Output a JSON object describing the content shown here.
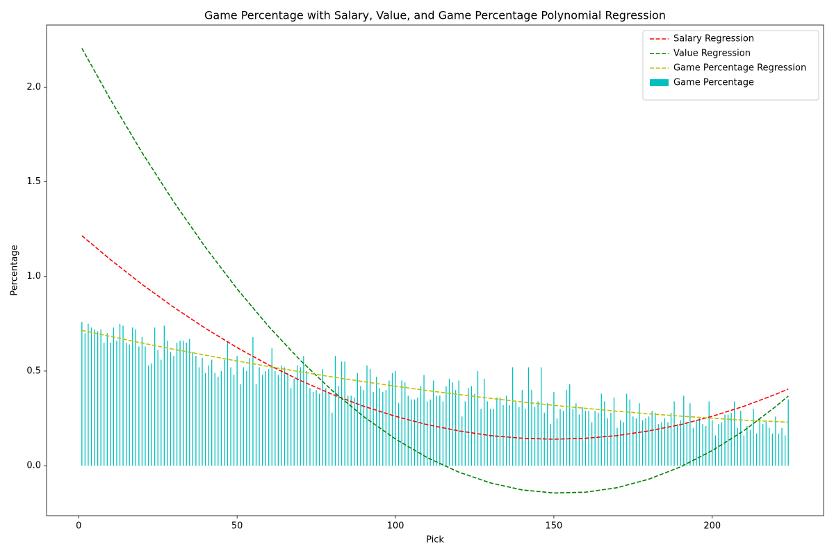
{
  "chart_data": {
    "type": "bar",
    "title": "Game Percentage with Salary, Value, and Game Percentage Polynomial Regression",
    "x_label": "Pick",
    "y_label": "Percentage",
    "xlim": [
      -10.15,
      235.15
    ],
    "ylim": [
      -0.264,
      2.328
    ],
    "xticks": [
      0,
      50,
      100,
      150,
      200
    ],
    "yticks": [
      {
        "value": 0,
        "label": "0.0"
      },
      0.5,
      {
        "value": 1,
        "label": "1.0"
      },
      1.5,
      {
        "value": 2,
        "label": "2.0"
      }
    ],
    "legend": "upper right",
    "series": [
      {
        "name": "Salary Regression",
        "type": "line",
        "color": "#ff0000",
        "linestyle": "dashed",
        "x": [
          1,
          10,
          20,
          30,
          40,
          50,
          60,
          70,
          80,
          90,
          100,
          110,
          120,
          130,
          140,
          150,
          160,
          170,
          180,
          190,
          200,
          210,
          220,
          224
        ],
        "values": [
          1.215,
          1.089,
          0.958,
          0.837,
          0.726,
          0.624,
          0.532,
          0.45,
          0.377,
          0.314,
          0.261,
          0.217,
          0.184,
          0.159,
          0.145,
          0.14,
          0.145,
          0.159,
          0.184,
          0.217,
          0.261,
          0.314,
          0.377,
          0.405
        ]
      },
      {
        "name": "Value Regression",
        "type": "line",
        "color": "#008000",
        "linestyle": "dashed",
        "x": [
          1,
          10,
          20,
          30,
          40,
          50,
          60,
          70,
          80,
          90,
          100,
          110,
          120,
          130,
          140,
          150,
          160,
          170,
          180,
          190,
          200,
          210,
          220,
          224
        ],
        "values": [
          2.205,
          1.935,
          1.654,
          1.394,
          1.154,
          0.934,
          0.735,
          0.556,
          0.397,
          0.259,
          0.141,
          0.043,
          -0.034,
          -0.091,
          -0.128,
          -0.144,
          -0.14,
          -0.116,
          -0.071,
          -0.006,
          0.08,
          0.185,
          0.312,
          0.368
        ]
      },
      {
        "name": "Game Percentage Regression",
        "type": "line",
        "color": "#bfbf00",
        "linestyle": "dashed",
        "x": [
          1,
          10,
          20,
          30,
          40,
          50,
          60,
          70,
          80,
          90,
          100,
          110,
          120,
          130,
          140,
          150,
          160,
          170,
          180,
          190,
          200,
          210,
          220,
          224
        ],
        "values": [
          0.715,
          0.683,
          0.648,
          0.615,
          0.584,
          0.553,
          0.524,
          0.496,
          0.469,
          0.444,
          0.42,
          0.397,
          0.376,
          0.356,
          0.337,
          0.319,
          0.303,
          0.288,
          0.274,
          0.262,
          0.251,
          0.241,
          0.233,
          0.23
        ]
      },
      {
        "name": "Game Percentage",
        "type": "bar",
        "color": "#00bfbf",
        "x": [
          1,
          2,
          3,
          4,
          5,
          6,
          7,
          8,
          9,
          10,
          11,
          12,
          13,
          14,
          15,
          16,
          17,
          18,
          19,
          20,
          21,
          22,
          23,
          24,
          25,
          26,
          27,
          28,
          29,
          30,
          31,
          32,
          33,
          34,
          35,
          36,
          37,
          38,
          39,
          40,
          41,
          42,
          43,
          44,
          45,
          46,
          47,
          48,
          49,
          50,
          51,
          52,
          53,
          54,
          55,
          56,
          57,
          58,
          59,
          60,
          61,
          62,
          63,
          64,
          65,
          66,
          67,
          68,
          69,
          70,
          71,
          72,
          73,
          74,
          75,
          76,
          77,
          78,
          79,
          80,
          81,
          82,
          83,
          84,
          85,
          86,
          87,
          88,
          89,
          90,
          91,
          92,
          93,
          94,
          95,
          96,
          97,
          98,
          99,
          100,
          101,
          102,
          103,
          104,
          105,
          106,
          107,
          108,
          109,
          110,
          111,
          112,
          113,
          114,
          115,
          116,
          117,
          118,
          119,
          120,
          121,
          122,
          123,
          124,
          125,
          126,
          127,
          128,
          129,
          130,
          131,
          132,
          133,
          134,
          135,
          136,
          137,
          138,
          139,
          140,
          141,
          142,
          143,
          144,
          145,
          146,
          147,
          148,
          149,
          150,
          151,
          152,
          153,
          154,
          155,
          156,
          157,
          158,
          159,
          160,
          161,
          162,
          163,
          164,
          165,
          166,
          167,
          168,
          169,
          170,
          171,
          172,
          173,
          174,
          175,
          176,
          177,
          178,
          179,
          180,
          181,
          182,
          183,
          184,
          185,
          186,
          187,
          188,
          189,
          190,
          191,
          192,
          193,
          194,
          195,
          196,
          197,
          198,
          199,
          200,
          201,
          202,
          203,
          204,
          205,
          206,
          207,
          208,
          209,
          210,
          211,
          212,
          213,
          214,
          215,
          216,
          217,
          218,
          219,
          220,
          221,
          222,
          223,
          224
        ],
        "values": [
          0.76,
          0.7,
          0.75,
          0.73,
          0.72,
          0.71,
          0.72,
          0.65,
          0.7,
          0.65,
          0.73,
          0.66,
          0.75,
          0.74,
          0.65,
          0.64,
          0.73,
          0.72,
          0.63,
          0.68,
          0.63,
          0.53,
          0.54,
          0.73,
          0.61,
          0.56,
          0.74,
          0.66,
          0.6,
          0.58,
          0.65,
          0.66,
          0.66,
          0.65,
          0.67,
          0.6,
          0.58,
          0.52,
          0.57,
          0.49,
          0.53,
          0.56,
          0.49,
          0.47,
          0.5,
          0.56,
          0.66,
          0.52,
          0.48,
          0.58,
          0.43,
          0.52,
          0.5,
          0.57,
          0.68,
          0.43,
          0.52,
          0.48,
          0.5,
          0.51,
          0.62,
          0.5,
          0.48,
          0.53,
          0.52,
          0.49,
          0.41,
          0.46,
          0.53,
          0.52,
          0.58,
          0.5,
          0.41,
          0.39,
          0.4,
          0.38,
          0.51,
          0.41,
          0.39,
          0.28,
          0.58,
          0.42,
          0.55,
          0.55,
          0.37,
          0.37,
          0.36,
          0.49,
          0.42,
          0.4,
          0.53,
          0.51,
          0.39,
          0.47,
          0.41,
          0.39,
          0.4,
          0.45,
          0.49,
          0.5,
          0.33,
          0.45,
          0.44,
          0.37,
          0.35,
          0.35,
          0.36,
          0.42,
          0.48,
          0.34,
          0.35,
          0.45,
          0.37,
          0.37,
          0.34,
          0.42,
          0.46,
          0.44,
          0.4,
          0.45,
          0.26,
          0.34,
          0.41,
          0.42,
          0.38,
          0.5,
          0.3,
          0.46,
          0.34,
          0.3,
          0.3,
          0.36,
          0.36,
          0.32,
          0.37,
          0.32,
          0.52,
          0.34,
          0.31,
          0.4,
          0.3,
          0.52,
          0.4,
          0.31,
          0.34,
          0.52,
          0.28,
          0.33,
          0.22,
          0.39,
          0.25,
          0.3,
          0.29,
          0.4,
          0.43,
          0.3,
          0.33,
          0.27,
          0.31,
          0.29,
          0.29,
          0.23,
          0.29,
          0.28,
          0.38,
          0.34,
          0.25,
          0.28,
          0.36,
          0.2,
          0.24,
          0.23,
          0.38,
          0.35,
          0.26,
          0.25,
          0.33,
          0.24,
          0.25,
          0.26,
          0.29,
          0.28,
          0.22,
          0.23,
          0.25,
          0.23,
          0.28,
          0.34,
          0.22,
          0.24,
          0.37,
          0.23,
          0.33,
          0.2,
          0.24,
          0.25,
          0.22,
          0.21,
          0.34,
          0.24,
          0.16,
          0.22,
          0.23,
          0.27,
          0.27,
          0.28,
          0.34,
          0.2,
          0.29,
          0.16,
          0.21,
          0.19,
          0.3,
          0.17,
          0.25,
          0.22,
          0.24,
          0.2,
          0.17,
          0.26,
          0.17,
          0.2,
          0.16,
          0.35
        ]
      }
    ]
  }
}
